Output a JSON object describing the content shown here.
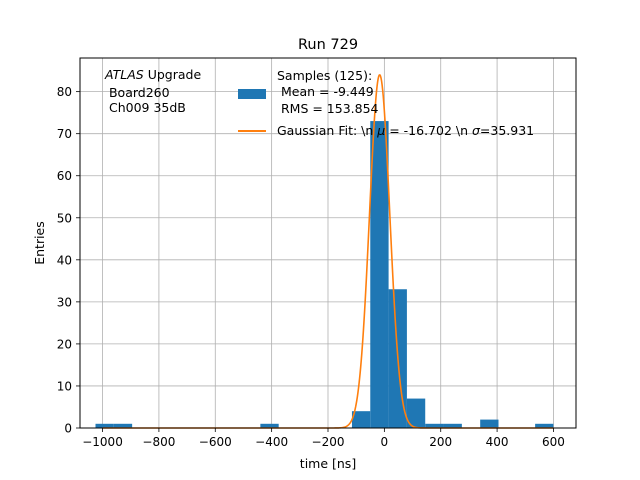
{
  "chart_data": {
    "type": "bar",
    "title": "Run 729",
    "xlabel": "time [ns]",
    "ylabel": "Entries",
    "xlim": [
      -1080,
      680
    ],
    "ylim": [
      0,
      88
    ],
    "grid": true,
    "xticks": [
      -1000,
      -800,
      -600,
      -400,
      -200,
      0,
      200,
      400,
      600
    ],
    "yticks": [
      0,
      10,
      20,
      30,
      40,
      50,
      60,
      70,
      80
    ],
    "xtick_labels": [
      "−1000",
      "−800",
      "−600",
      "−400",
      "−200",
      "0",
      "200",
      "400",
      "600"
    ],
    "ytick_labels": [
      "0",
      "10",
      "20",
      "30",
      "40",
      "50",
      "60",
      "70",
      "80"
    ],
    "bin_edges": [
      -1025,
      -960,
      -895,
      -830,
      -765,
      -700,
      -635,
      -570,
      -505,
      -440,
      -375,
      -310,
      -245,
      -180,
      -115,
      -50,
      15,
      80,
      145,
      210,
      275,
      340,
      405,
      470,
      535,
      600,
      665
    ],
    "bin_edges_note_removed": true,
    "histogram": {
      "name": "Samples (125):",
      "color": "#1f77b4",
      "counts": [
        1,
        1,
        0,
        0,
        0,
        0,
        0,
        0,
        0,
        1,
        0,
        0,
        0,
        0,
        4,
        73,
        33,
        7,
        1,
        1,
        0,
        2,
        0,
        0,
        1,
        0
      ]
    },
    "fit": {
      "name": "Gaussian Fit: \\n $\\mu$ = -16.702 \\n $\\sigma$=35.931",
      "color": "#ff7f0e",
      "type": "gaussian",
      "mu": -16.702,
      "sigma": 35.931,
      "amplitude": 84,
      "x_range": [
        -1000,
        600
      ]
    },
    "legend": {
      "placement": "top-center",
      "entries": [
        {
          "lines": [
            "Samples (125):",
            " Mean = -9.449",
            " RMS = 153.854"
          ],
          "color": "#1f77b4",
          "kind": "patch"
        },
        {
          "lines": [
            "Gaussian Fit: \\n $\\mu$ = -16.702 \\n $\\sigma$=35.931"
          ],
          "color": "#ff7f0e",
          "kind": "line"
        }
      ]
    },
    "annotation": {
      "lines": [
        "ATLAS Upgrade",
        " Board260",
        " Ch009 35dB"
      ]
    }
  }
}
